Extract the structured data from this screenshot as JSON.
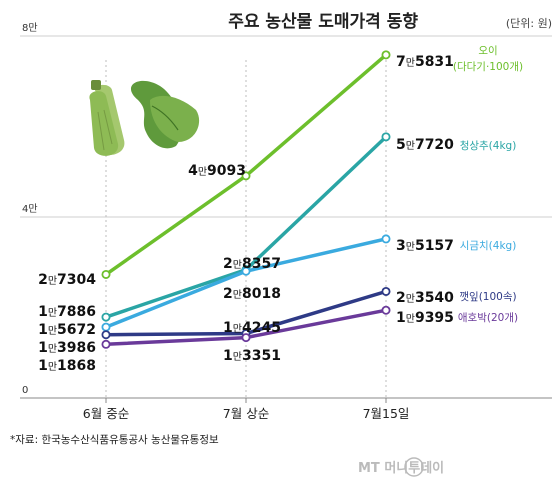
{
  "header": {
    "title": "주요 농산물 도매가격 동향",
    "unit": "(단위: 원)"
  },
  "footer": {
    "source": "*자료: 한국농수산식품유통공사 농산물유통정보",
    "logo": "MT 머니투데이"
  },
  "colors": {
    "oi": "#6dbf2c",
    "cheongsangchu": "#2aa5a5",
    "sigeumchi": "#3aaadf",
    "kkaennip": "#2e3a86",
    "aehobak": "#6a3a9a"
  },
  "chart_data": {
    "type": "line",
    "title": "주요 농산물 도매가격 동향",
    "unit": "(단위: 원)",
    "categories": [
      "6월 중순",
      "7월 상순",
      "7월15일"
    ],
    "y_ticks": [
      {
        "value": 0,
        "label": "0"
      },
      {
        "value": 40000,
        "label": "4만"
      },
      {
        "value": 80000,
        "label": "8만"
      }
    ],
    "ylim": [
      0,
      80000
    ],
    "legend_placement": "right",
    "series": [
      {
        "name": "오이(다다기·100개)",
        "legend_lines": [
          "오이",
          "(다다기·100개)"
        ],
        "color": "#6dbf2c",
        "values": [
          27304,
          49093,
          75831
        ],
        "labels": [
          "2만7304",
          "4만9093",
          "7만5831"
        ]
      },
      {
        "name": "청상추(4kg)",
        "legend_lines": [
          "청상추(4kg)"
        ],
        "color": "#2aa5a5",
        "values": [
          17886,
          28357,
          57720
        ],
        "labels": [
          "1만7886",
          "2만8357",
          "5만7720"
        ]
      },
      {
        "name": "시금치(4kg)",
        "legend_lines": [
          "시금치(4kg)"
        ],
        "color": "#3aaadf",
        "values": [
          15672,
          28018,
          35157
        ],
        "labels": [
          "1만5672",
          "2만8018",
          "3만5157"
        ]
      },
      {
        "name": "깻잎(100속)",
        "legend_lines": [
          "깻잎(100속)"
        ],
        "color": "#2e3a86",
        "values": [
          13986,
          14245,
          23540
        ],
        "labels": [
          "1만3986",
          "1만4245",
          "2만3540"
        ]
      },
      {
        "name": "애호박(20개)",
        "legend_lines": [
          "애호박(20개)"
        ],
        "color": "#6a3a9a",
        "values": [
          11868,
          13351,
          19395
        ],
        "labels": [
          "1만1868",
          "1만3351",
          "1만9395"
        ]
      }
    ]
  }
}
